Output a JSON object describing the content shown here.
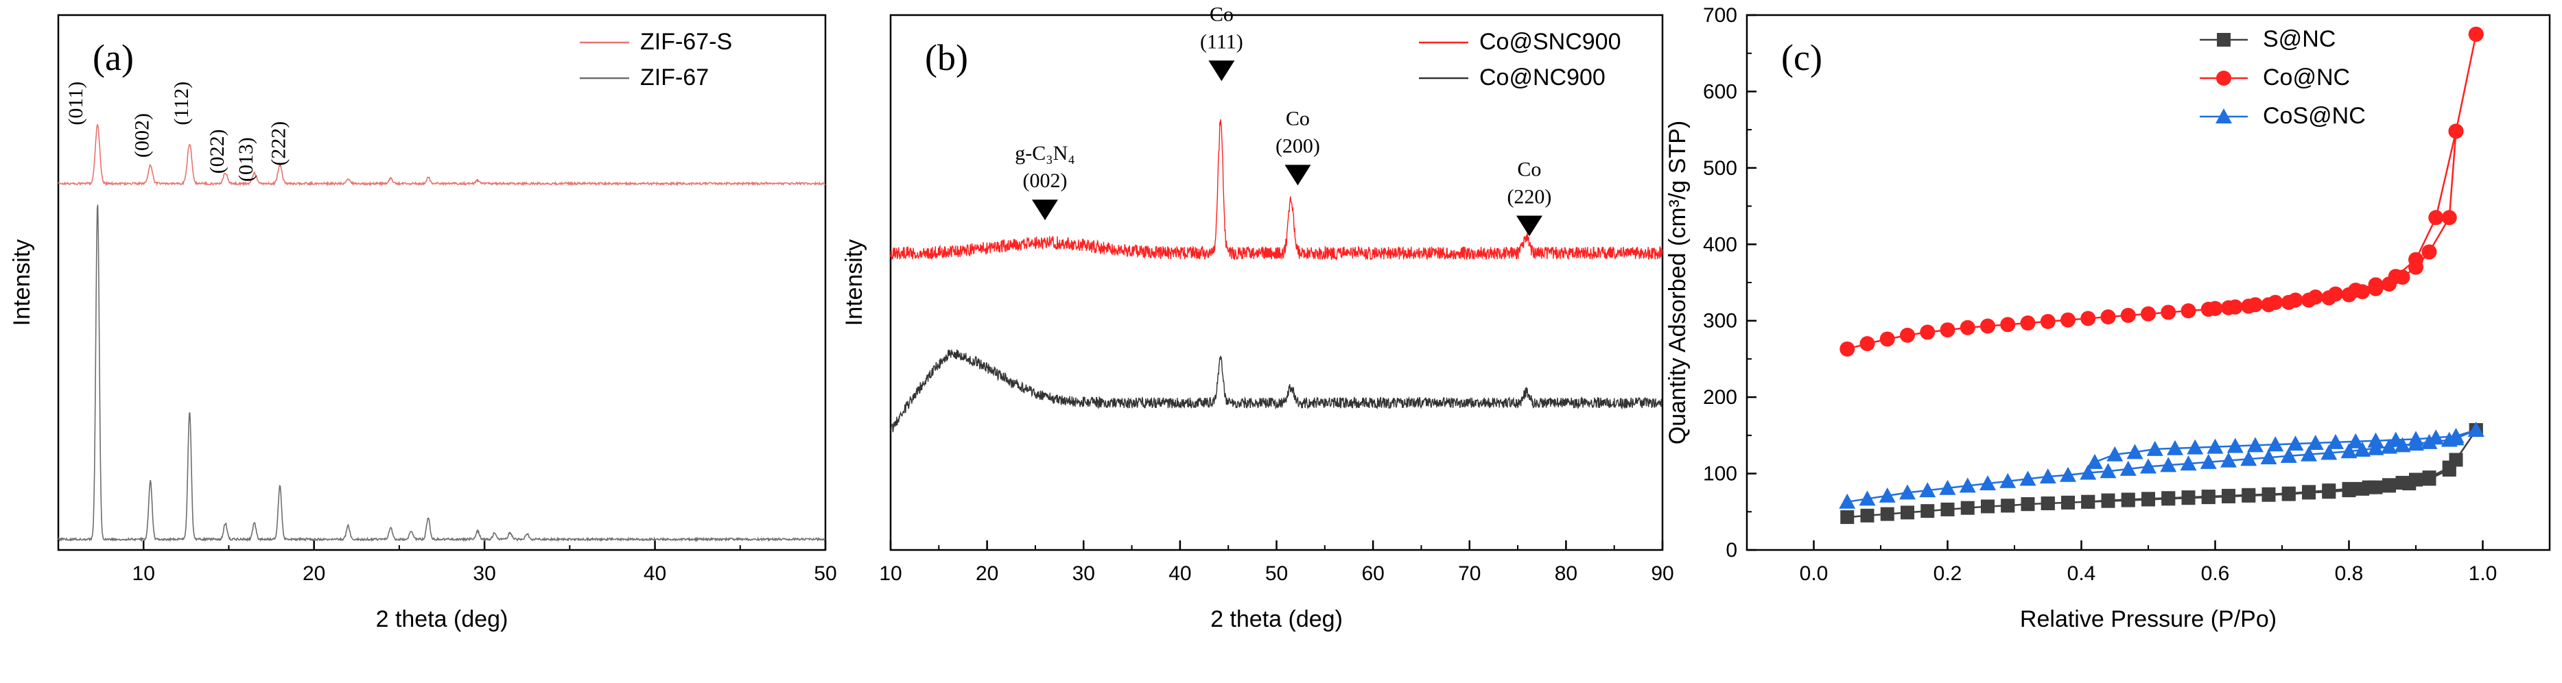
{
  "chart_data": [
    {
      "panel_label": "(a)",
      "type": "line",
      "xlabel": "2 theta (deg)",
      "ylabel": "Intensity",
      "xlim": [
        5,
        50
      ],
      "ylim": [
        0,
        1
      ],
      "xticks": [
        10,
        20,
        30,
        40,
        50
      ],
      "xtick_labels": [
        "10",
        "20",
        "30",
        "40",
        "50"
      ],
      "legend": [
        "ZIF-67-S",
        "ZIF-67"
      ],
      "series": [
        {
          "name": "ZIF-67-S",
          "color": "#e8736f",
          "baseline": 0.685,
          "noise": 0.002,
          "hump": [],
          "peaks": [
            [
              7.3,
              0.11,
              0.13
            ],
            [
              10.4,
              0.035,
              0.12
            ],
            [
              12.7,
              0.075,
              0.13
            ],
            [
              14.8,
              0.02,
              0.12
            ],
            [
              16.5,
              0.02,
              0.12
            ],
            [
              18.0,
              0.035,
              0.12
            ],
            [
              22.0,
              0.008,
              0.1
            ],
            [
              24.5,
              0.01,
              0.1
            ],
            [
              26.7,
              0.012,
              0.1
            ],
            [
              29.6,
              0.006,
              0.1
            ]
          ]
        },
        {
          "name": "ZIF-67",
          "color": "#6e6e6e",
          "baseline": 0.02,
          "noise": 0.002,
          "hump": [],
          "peaks": [
            [
              7.3,
              0.63,
              0.1
            ],
            [
              10.4,
              0.11,
              0.1
            ],
            [
              12.7,
              0.24,
              0.1
            ],
            [
              14.8,
              0.03,
              0.1
            ],
            [
              16.5,
              0.03,
              0.1
            ],
            [
              18.0,
              0.1,
              0.1
            ],
            [
              22.0,
              0.025,
              0.1
            ],
            [
              24.5,
              0.022,
              0.1
            ],
            [
              25.7,
              0.015,
              0.1
            ],
            [
              26.7,
              0.04,
              0.1
            ],
            [
              29.6,
              0.015,
              0.1
            ],
            [
              30.6,
              0.012,
              0.1
            ],
            [
              31.5,
              0.012,
              0.1
            ],
            [
              32.5,
              0.01,
              0.1
            ]
          ]
        }
      ],
      "annotations": [
        {
          "text": "(011)",
          "x": 6.4,
          "y": 0.835
        },
        {
          "text": "(002)",
          "x": 10.3,
          "y": 0.775
        },
        {
          "text": "(112)",
          "x": 12.6,
          "y": 0.835
        },
        {
          "text": "(022)",
          "x": 14.7,
          "y": 0.745
        },
        {
          "text": "(013)",
          "x": 16.4,
          "y": 0.73
        },
        {
          "text": "(222)",
          "x": 18.3,
          "y": 0.76
        }
      ]
    },
    {
      "panel_label": "(b)",
      "type": "line",
      "xlabel": "2 theta (deg)",
      "ylabel": "Intensity",
      "xlim": [
        10,
        90
      ],
      "ylim": [
        0,
        1
      ],
      "xticks": [
        10,
        20,
        30,
        40,
        50,
        60,
        70,
        80,
        90
      ],
      "xtick_labels": [
        "10",
        "20",
        "30",
        "40",
        "50",
        "60",
        "70",
        "80",
        "90"
      ],
      "legend": [
        "Co@SNC900",
        "Co@NC900"
      ],
      "series": [
        {
          "name": "Co@SNC900",
          "color": "#ff2020",
          "baseline": 0.555,
          "noise": 0.012,
          "hump": [
            26,
            0.02,
            5
          ],
          "peaks": [
            [
              44.2,
              0.25,
              0.25
            ],
            [
              51.5,
              0.1,
              0.28
            ],
            [
              75.9,
              0.03,
              0.3
            ]
          ]
        },
        {
          "name": "Co@NC900",
          "color": "#333333",
          "baseline": 0.275,
          "noise": 0.01,
          "hump": [
            16,
            0.09,
            5
          ],
          "peaks": [
            [
              44.2,
              0.085,
              0.25
            ],
            [
              51.5,
              0.03,
              0.28
            ],
            [
              75.9,
              0.02,
              0.3
            ]
          ]
        }
      ],
      "markers": [
        {
          "label1": "g-C₃N₄",
          "label2": "(002)",
          "x": 26,
          "y": 0.655
        },
        {
          "label1": "Co",
          "label2": "(111)",
          "x": 44.3,
          "y": 0.915
        },
        {
          "label1": "Co",
          "label2": "(200)",
          "x": 52.2,
          "y": 0.72
        },
        {
          "label1": "Co",
          "label2": "(220)",
          "x": 76.2,
          "y": 0.625
        }
      ]
    },
    {
      "panel_label": "(c)",
      "type": "line",
      "xlabel": "Relative Pressure (P/Po)",
      "ylabel": "Quantity Adsorbed (cm³/g STP)",
      "xlim": [
        -0.1,
        1.1
      ],
      "ylim": [
        0,
        700
      ],
      "xticks": [
        0.0,
        0.2,
        0.4,
        0.6,
        0.8,
        1.0
      ],
      "xtick_labels": [
        "0.0",
        "0.2",
        "0.4",
        "0.6",
        "0.8",
        "1.0"
      ],
      "yticks": [
        0,
        100,
        200,
        300,
        400,
        500,
        600,
        700
      ],
      "ytick_labels": [
        "0",
        "100",
        "200",
        "300",
        "400",
        "500",
        "600",
        "700"
      ],
      "legend": [
        "S@NC",
        "Co@NC",
        "CoS@NC"
      ],
      "series": [
        {
          "name": "S@NC",
          "color": "#404040",
          "marker": "square",
          "x": [
            0.05,
            0.08,
            0.11,
            0.14,
            0.17,
            0.2,
            0.23,
            0.26,
            0.29,
            0.32,
            0.35,
            0.38,
            0.41,
            0.44,
            0.47,
            0.5,
            0.53,
            0.56,
            0.59,
            0.62,
            0.65,
            0.68,
            0.71,
            0.74,
            0.77,
            0.8,
            0.82,
            0.84,
            0.86,
            0.88,
            0.9,
            0.92,
            0.95,
            0.96,
            0.99,
            0.99,
            0.95,
            0.92,
            0.89,
            0.86,
            0.83,
            0.8,
            0.77,
            0.74,
            0.71,
            0.68,
            0.65,
            0.62,
            0.59,
            0.56,
            0.53,
            0.5,
            0.47,
            0.44,
            0.41,
            0.38,
            0.35,
            0.32,
            0.29
          ],
          "y": [
            43,
            45,
            47,
            49,
            51,
            53,
            55,
            57,
            58,
            60,
            61,
            62,
            63,
            64,
            65,
            66,
            67,
            68,
            69,
            70,
            71,
            72,
            73,
            75,
            76,
            78,
            80,
            82,
            85,
            88,
            92,
            95,
            108,
            118,
            157,
            157,
            105,
            93,
            87,
            84,
            82,
            80,
            78,
            76,
            74,
            73,
            72,
            71,
            70,
            69,
            68,
            67,
            66,
            65,
            63,
            62,
            61,
            60,
            58
          ]
        },
        {
          "name": "Co@NC",
          "color": "#ff2020",
          "marker": "circle",
          "x": [
            0.05,
            0.08,
            0.11,
            0.14,
            0.17,
            0.2,
            0.23,
            0.26,
            0.29,
            0.32,
            0.35,
            0.38,
            0.41,
            0.44,
            0.47,
            0.5,
            0.53,
            0.56,
            0.59,
            0.62,
            0.65,
            0.68,
            0.71,
            0.74,
            0.77,
            0.8,
            0.82,
            0.84,
            0.86,
            0.88,
            0.9,
            0.92,
            0.95,
            0.96,
            0.99,
            0.99,
            0.96,
            0.93,
            0.9,
            0.87,
            0.84,
            0.81,
            0.78,
            0.75,
            0.72,
            0.69,
            0.66,
            0.63,
            0.6
          ],
          "y": [
            263,
            270,
            276,
            281,
            285,
            288,
            291,
            293,
            295,
            297,
            299,
            301,
            303,
            305,
            307,
            309,
            311,
            313,
            315,
            317,
            319,
            321,
            324,
            327,
            330,
            334,
            338,
            342,
            348,
            357,
            370,
            390,
            435,
            548,
            675,
            675,
            548,
            435,
            380,
            358,
            347,
            340,
            335,
            331,
            327,
            324,
            321,
            318,
            316
          ]
        },
        {
          "name": "CoS@NC",
          "color": "#1f6fe0",
          "marker": "triangle",
          "x": [
            0.05,
            0.08,
            0.11,
            0.14,
            0.17,
            0.2,
            0.23,
            0.26,
            0.29,
            0.32,
            0.35,
            0.38,
            0.41,
            0.44,
            0.47,
            0.5,
            0.53,
            0.56,
            0.59,
            0.62,
            0.65,
            0.68,
            0.71,
            0.74,
            0.77,
            0.8,
            0.82,
            0.84,
            0.86,
            0.88,
            0.9,
            0.92,
            0.95,
            0.96,
            0.99,
            0.99,
            0.96,
            0.93,
            0.9,
            0.87,
            0.84,
            0.81,
            0.78,
            0.75,
            0.72,
            0.69,
            0.66,
            0.63,
            0.6,
            0.57,
            0.54,
            0.51,
            0.48,
            0.45,
            0.42
          ],
          "y": [
            63,
            67,
            71,
            75,
            78,
            81,
            84,
            87,
            90,
            93,
            96,
            98,
            101,
            103,
            106,
            109,
            111,
            113,
            115,
            117,
            119,
            121,
            123,
            125,
            127,
            129,
            131,
            133,
            135,
            137,
            139,
            141,
            144,
            146,
            157,
            157,
            149,
            147,
            145,
            144,
            143,
            142,
            141,
            140,
            139,
            138,
            137,
            136,
            135,
            134,
            133,
            132,
            128,
            125,
            115
          ]
        }
      ]
    }
  ]
}
